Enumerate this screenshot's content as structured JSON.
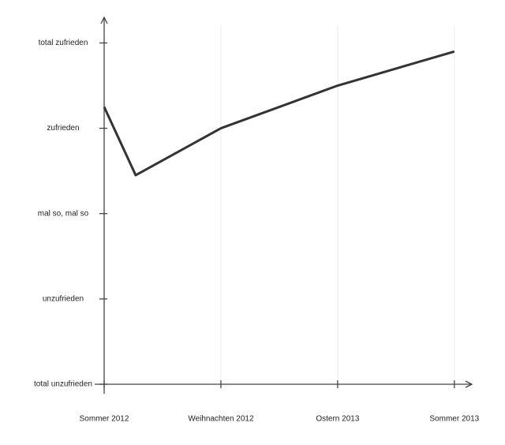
{
  "chart_data": {
    "type": "line",
    "x": [
      0,
      0.27,
      1,
      2,
      3
    ],
    "series": [
      {
        "color": "#333333",
        "values": [
          3.25,
          2.45,
          3,
          3.5,
          3.9
        ]
      }
    ],
    "xlim": [
      0,
      3.15
    ],
    "ylim": [
      0,
      4.3
    ],
    "xticks": [
      {
        "value": 0,
        "label": "Sommer 2012"
      },
      {
        "value": 1,
        "label": "Weihnachten 2012"
      },
      {
        "value": 2,
        "label": "Ostern 2013"
      },
      {
        "value": 3,
        "label": "Sommer 2013"
      }
    ],
    "yticks": [
      {
        "value": 0,
        "label": "total unzufrieden"
      },
      {
        "value": 1,
        "label": "unzufrieden"
      },
      {
        "value": 2,
        "label": "mal so, mal so"
      },
      {
        "value": 3,
        "label": "zufrieden"
      },
      {
        "value": 4,
        "label": "total zufrieden"
      }
    ],
    "grid": true
  }
}
